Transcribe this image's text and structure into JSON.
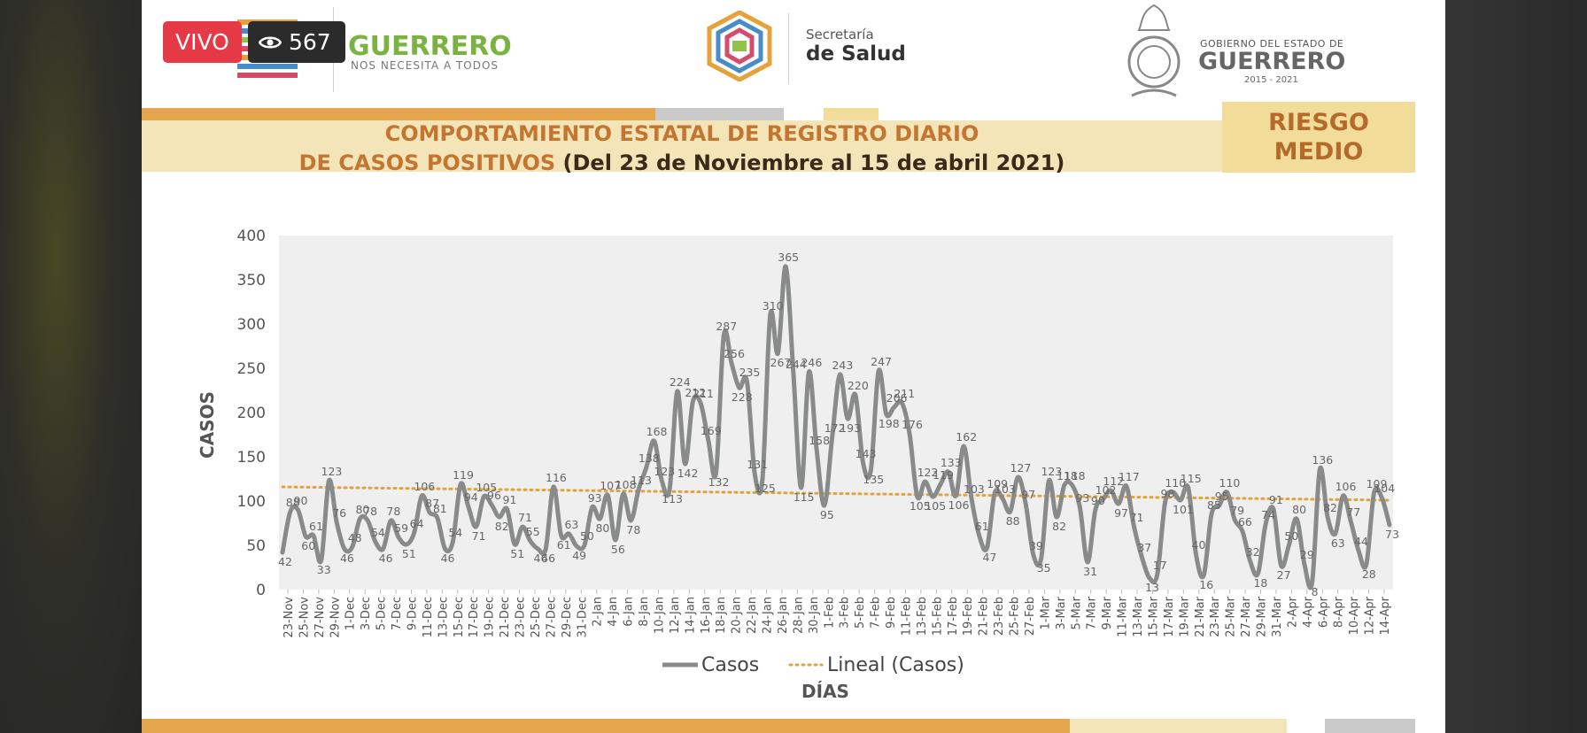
{
  "overlay": {
    "live_label": "VIVO",
    "view_count": "567"
  },
  "header": {
    "guerrero_title": "GUERRERO",
    "guerrero_tagline": "NOS NECESITA A TODOS",
    "salud_line1": "Secretaría",
    "salud_line2": "de Salud",
    "gobierno_line1": "GOBIERNO DEL ESTADO DE",
    "gobierno_line2": "GUERRERO",
    "gobierno_years": "2015 - 2021"
  },
  "title": {
    "line1": "COMPORTAMIENTO ESTATAL DE REGISTRO DIARIO",
    "line2_a": "DE CASOS POSITIVOS",
    "line2_b": "(Del 23 de Noviembre al 15 de abril 2021)"
  },
  "risk": {
    "line1": "RIESGO",
    "line2": "MEDIO"
  },
  "colors": {
    "series": "#888b8a",
    "trend": "#e1a33c",
    "accent_orange": "#e4a54d",
    "title_orange": "#c4752f",
    "title_band": "#f3e5b8",
    "plot_bg": "#efefef"
  },
  "chart_data": {
    "type": "line",
    "ylabel": "CASOS",
    "xlabel": "DÍAS",
    "ylim": [
      0,
      400
    ],
    "yticks": [
      "0",
      "50",
      "100",
      "150",
      "200",
      "250",
      "300",
      "350",
      "400"
    ],
    "xtick_labels": [
      "23-Nov",
      "25-Nov",
      "27-Nov",
      "29-Nov",
      "1-Dec",
      "3-Dec",
      "5-Dec",
      "7-Dec",
      "9-Dec",
      "11-Dec",
      "13-Dec",
      "15-Dec",
      "17-Dec",
      "19-Dec",
      "21-Dec",
      "23-Dec",
      "25-Dec",
      "27-Dec",
      "29-Dec",
      "31-Dec",
      "2-Jan",
      "4-Jan",
      "6-Jan",
      "8-Jan",
      "10-Jan",
      "12-Jan",
      "14-Jan",
      "16-Jan",
      "18-Jan",
      "20-Jan",
      "22-Jan",
      "24-Jan",
      "26-Jan",
      "28-Jan",
      "30-Jan",
      "1-Feb",
      "3-Feb",
      "5-Feb",
      "7-Feb",
      "9-Feb",
      "11-Feb",
      "13-Feb",
      "15-Feb",
      "17-Feb",
      "19-Feb",
      "21-Feb",
      "23-Feb",
      "25-Feb",
      "27-Feb",
      "1-Mar",
      "3-Mar",
      "5-Mar",
      "7-Mar",
      "9-Mar",
      "11-Mar",
      "13-Mar",
      "15-Mar",
      "17-Mar",
      "19-Mar",
      "21-Mar",
      "23-Mar",
      "25-Mar",
      "27-Mar",
      "29-Mar",
      "31-Mar",
      "2-Apr",
      "4-Apr",
      "6-Apr",
      "8-Apr",
      "10-Apr",
      "12-Apr",
      "14-Apr"
    ],
    "legend": {
      "placement": "bottom",
      "series_label": "Casos",
      "trend_label": "Lineal (Casos)"
    },
    "series": [
      {
        "name": "Casos",
        "values": [
          42,
          88,
          90,
          60,
          61,
          33,
          123,
          76,
          46,
          48,
          80,
          78,
          54,
          46,
          78,
          59,
          51,
          64,
          106,
          87,
          81,
          46,
          54,
          119,
          94,
          71,
          105,
          96,
          82,
          91,
          51,
          71,
          55,
          46,
          46,
          116,
          61,
          63,
          49,
          50,
          93,
          80,
          107,
          56,
          108,
          78,
          113,
          138,
          168,
          123,
          113,
          224,
          142,
          212,
          211,
          169,
          132,
          287,
          256,
          228,
          235,
          131,
          125,
          310,
          267,
          365,
          244,
          115,
          246,
          158,
          95,
          172,
          243,
          193,
          220,
          143,
          135,
          247,
          198,
          206,
          211,
          176,
          105,
          122,
          105,
          119,
          133,
          106,
          162,
          103,
          61,
          47,
          109,
          103,
          88,
          127,
          97,
          39,
          35,
          123,
          82,
          118,
          118,
          93,
          31,
          90,
          102,
          112,
          97,
          117,
          71,
          37,
          13,
          17,
          98,
          110,
          101,
          115,
          40,
          16,
          85,
          95,
          110,
          79,
          66,
          32,
          18,
          74,
          91,
          27,
          50,
          80,
          29,
          8,
          136,
          82,
          63,
          106,
          77,
          44,
          28,
          109,
          104,
          73
        ]
      },
      {
        "name": "Lineal (Casos)",
        "trend_start": 116,
        "trend_end": 101
      }
    ]
  }
}
